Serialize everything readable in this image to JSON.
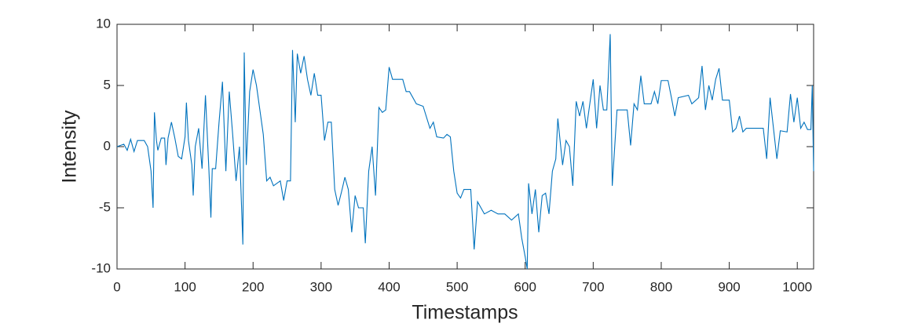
{
  "chart_data": {
    "type": "line",
    "xlabel": "Timestamps",
    "ylabel": "Intensity",
    "xlim": [
      0,
      1024
    ],
    "ylim": [
      -10,
      10
    ],
    "xticks": [
      0,
      100,
      200,
      300,
      400,
      500,
      600,
      700,
      800,
      900,
      1000
    ],
    "yticks": [
      -10,
      -5,
      0,
      5,
      10
    ],
    "series": [
      {
        "color": "#0072bd",
        "x": [
          0,
          10,
          15,
          20,
          25,
          30,
          40,
          45,
          50,
          53,
          55,
          58,
          60,
          65,
          70,
          72,
          75,
          80,
          85,
          90,
          95,
          100,
          102,
          105,
          110,
          112,
          115,
          120,
          125,
          130,
          135,
          138,
          140,
          145,
          150,
          155,
          160,
          165,
          170,
          175,
          180,
          185,
          187,
          190,
          195,
          200,
          205,
          210,
          215,
          220,
          225,
          230,
          240,
          245,
          250,
          255,
          258,
          262,
          265,
          270,
          275,
          280,
          285,
          290,
          295,
          300,
          305,
          310,
          315,
          320,
          325,
          330,
          335,
          340,
          345,
          350,
          355,
          362,
          365,
          370,
          375,
          380,
          385,
          390,
          395,
          400,
          405,
          420,
          425,
          430,
          440,
          450,
          460,
          465,
          470,
          480,
          485,
          490,
          495,
          500,
          505,
          510,
          520,
          525,
          530,
          540,
          550,
          560,
          570,
          580,
          590,
          595,
          600,
          603,
          605,
          610,
          615,
          620,
          625,
          630,
          635,
          640,
          645,
          648,
          655,
          660,
          665,
          670,
          675,
          680,
          685,
          690,
          700,
          705,
          710,
          715,
          720,
          725,
          728,
          735,
          745,
          750,
          755,
          760,
          765,
          770,
          775,
          785,
          790,
          795,
          800,
          810,
          815,
          820,
          825,
          840,
          845,
          855,
          860,
          865,
          870,
          875,
          880,
          885,
          890,
          900,
          905,
          910,
          915,
          920,
          925,
          935,
          945,
          950,
          955,
          960,
          965,
          970,
          975,
          985,
          990,
          995,
          1000,
          1005,
          1010,
          1015,
          1020,
          1022,
          1024
        ],
        "values": [
          0,
          0.2,
          -0.3,
          0.6,
          -0.4,
          0.5,
          0.5,
          0,
          -2,
          -5,
          2.8,
          0.5,
          -0.3,
          0.7,
          0.7,
          -1.5,
          0.7,
          2,
          0.7,
          -0.8,
          -1,
          0.8,
          3.6,
          0.5,
          -1.5,
          -4,
          0,
          1.5,
          -1.8,
          4.2,
          -1.8,
          -5.8,
          -1.8,
          -1.8,
          2,
          5.3,
          -2,
          4.5,
          1,
          -2.8,
          0,
          -8,
          7.7,
          -1.5,
          4.5,
          6.3,
          5,
          3,
          1,
          -2.8,
          -2.5,
          -3.2,
          -2.8,
          -4.4,
          -2.8,
          -2.8,
          7.9,
          2,
          7.6,
          6,
          7.4,
          5.5,
          4.2,
          6,
          4.2,
          4.2,
          0.5,
          2,
          2,
          -3.5,
          -4.8,
          -3.7,
          -2.5,
          -3.5,
          -7,
          -4,
          -5,
          -5,
          -7.9,
          -2,
          0,
          -4,
          3.2,
          2.8,
          3,
          6.5,
          5.5,
          5.5,
          4.5,
          4.5,
          3.5,
          3.3,
          1.5,
          2,
          0.8,
          0.7,
          1,
          0.8,
          -2,
          -3.8,
          -4.2,
          -3.5,
          -3.5,
          -8.4,
          -4.5,
          -5.5,
          -5.2,
          -5.5,
          -5.5,
          -6,
          -5.5,
          -7.5,
          -9,
          -10,
          -3,
          -5.5,
          -3.5,
          -7,
          -4,
          -3.8,
          -5.5,
          -2,
          -1,
          2.3,
          -1.5,
          0.5,
          0,
          -3.2,
          3.7,
          2.5,
          3.7,
          1.5,
          5.5,
          1.5,
          5,
          3,
          3,
          9.2,
          -3.2,
          3,
          3,
          3,
          0.1,
          3.5,
          3,
          5.8,
          3.5,
          3.5,
          4.5,
          3.5,
          5.4,
          5.4,
          4,
          2.5,
          4,
          4.2,
          3.5,
          4,
          6.6,
          3,
          5,
          3.8,
          5.5,
          6.4,
          3.8,
          3.8,
          1.2,
          1.5,
          2.5,
          1.2,
          1.5,
          1.5,
          1.5,
          1.5,
          -1,
          4,
          1.5,
          -1,
          1.3,
          1.2,
          4.3,
          2,
          4,
          1.5,
          2,
          1.4,
          1.4,
          5,
          -2
        ]
      }
    ]
  }
}
